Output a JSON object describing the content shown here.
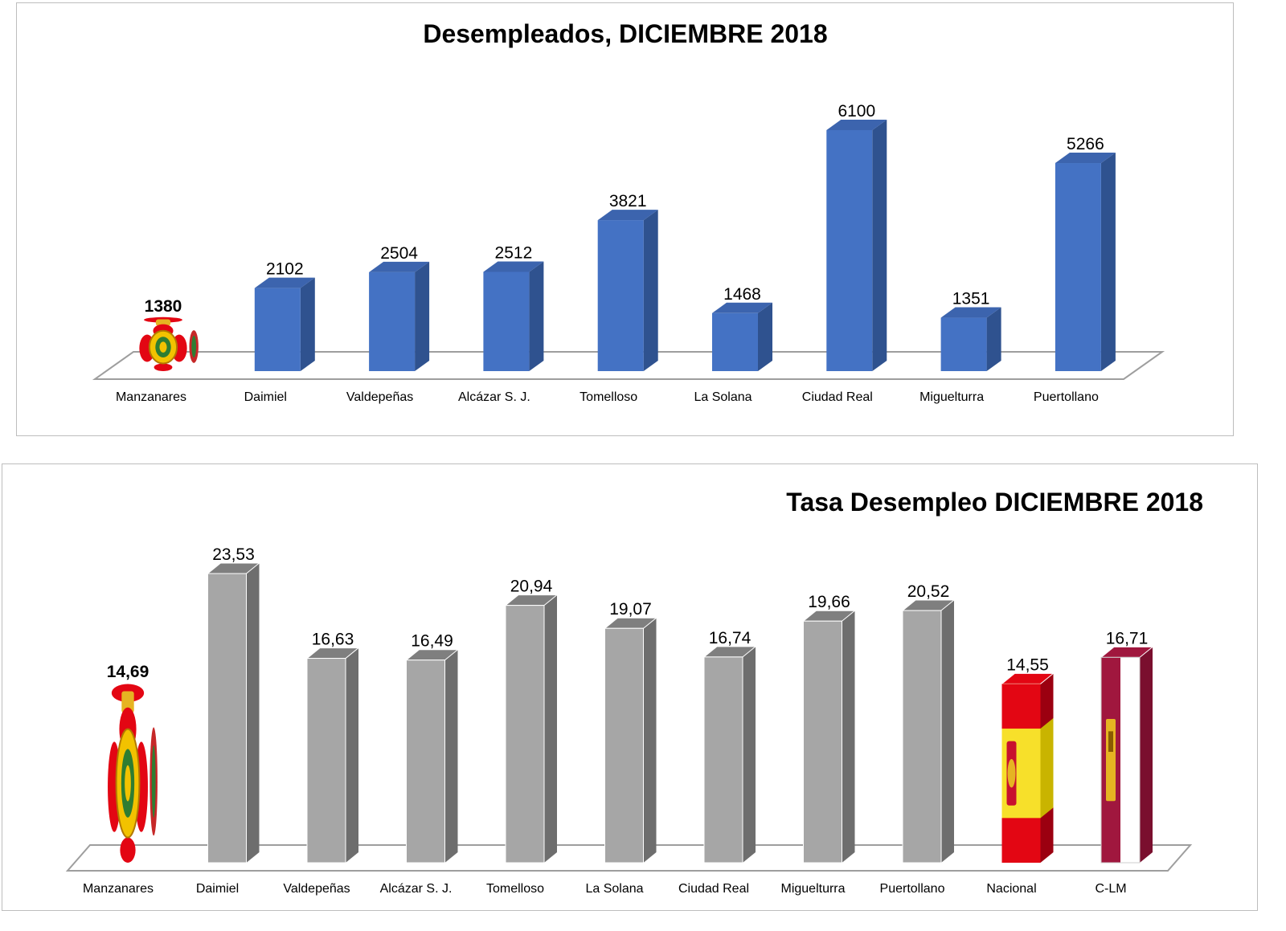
{
  "chart_data": [
    {
      "type": "bar",
      "title": "Desempleados, DICIEMBRE 2018",
      "categories": [
        "Manzanares",
        "Daimiel",
        "Valdepeñas",
        "Alcázar S. J.",
        "Tomelloso",
        "La Solana",
        "Ciudad Real",
        "Miguelturra",
        "Puertollano"
      ],
      "values": [
        1380,
        2102,
        2504,
        2512,
        3821,
        1468,
        6100,
        1351,
        5266
      ],
      "value_labels": [
        "1380",
        "2102",
        "2504",
        "2512",
        "3821",
        "1468",
        "6100",
        "1351",
        "5266"
      ],
      "bar_style": [
        "coat-of-arms",
        "blue",
        "blue",
        "blue",
        "blue",
        "blue",
        "blue",
        "blue",
        "blue"
      ],
      "bar_color": "#4472C4",
      "ylim": [
        0,
        6100
      ],
      "grid": false,
      "legend": false
    },
    {
      "type": "bar",
      "title": "Tasa Desempleo DICIEMBRE 2018",
      "categories": [
        "Manzanares",
        "Daimiel",
        "Valdepeñas",
        "Alcázar S. J.",
        "Tomelloso",
        "La Solana",
        "Ciudad Real",
        "Miguelturra",
        "Puertollano",
        "Nacional",
        "C-LM"
      ],
      "values": [
        14.69,
        23.53,
        16.63,
        16.49,
        20.94,
        19.07,
        16.74,
        19.66,
        20.52,
        14.55,
        16.71
      ],
      "value_labels": [
        "14,69",
        "23,53",
        "16,63",
        "16,49",
        "20,94",
        "19,07",
        "16,74",
        "19,66",
        "20,52",
        "14,55",
        "16,71"
      ],
      "bar_style": [
        "coat-of-arms",
        "gray",
        "gray",
        "gray",
        "gray",
        "gray",
        "gray",
        "gray",
        "gray",
        "spain-flag",
        "clm-flag"
      ],
      "bar_color": "#A6A6A6",
      "ylim": [
        0,
        23.53
      ],
      "grid": false,
      "legend": false
    }
  ],
  "colors": {
    "blue_front": "#4472C4",
    "blue_side": "#2F528F",
    "blue_top": "#3C64AE",
    "gray_front": "#A6A6A6",
    "gray_side": "#6E6E6E",
    "gray_top": "#7F7F7F",
    "spain_red": "#E30613",
    "spain_yellow": "#F7E02A",
    "clm_crimson": "#A0173E"
  }
}
